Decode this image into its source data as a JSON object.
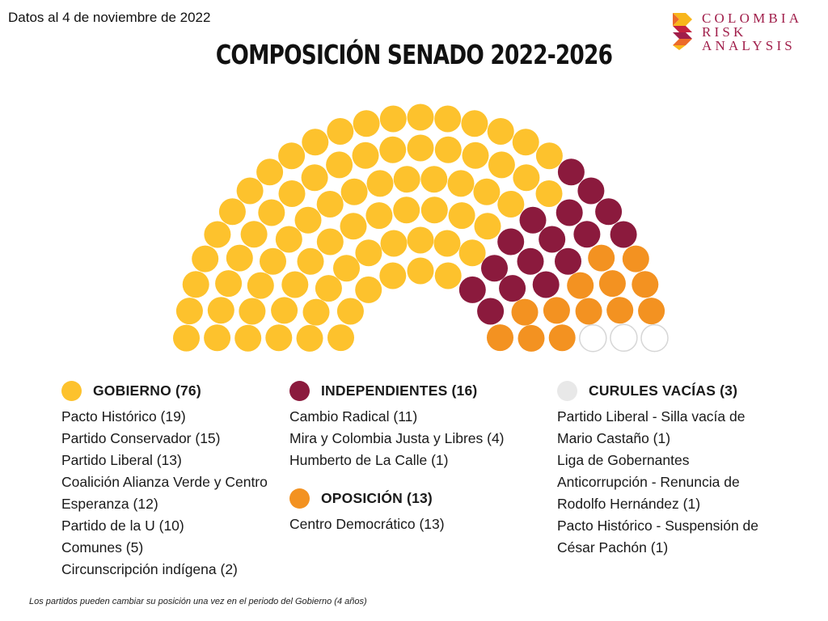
{
  "header": {
    "date_note": "Datos al 4 de noviembre de 2022",
    "logo_text": [
      "Colombia",
      "Risk",
      "Analysis"
    ]
  },
  "colors": {
    "gobierno": "#fdc22d",
    "independientes": "#8b1a3d",
    "oposicion": "#f39221",
    "vacias": "#ffffff",
    "vacias_legend": "#e8e8e8",
    "logo": "#a01e4a"
  },
  "chart_data": {
    "type": "parliament",
    "title": "COMPOSICIÓN SENADO 2022-2026",
    "total_seats": 108,
    "series": [
      {
        "name": "GOBIERNO",
        "count": 76,
        "color": "#fdc22d"
      },
      {
        "name": "INDEPENDIENTES",
        "count": 16,
        "color": "#8b1a3d"
      },
      {
        "name": "OPOSICIÓN",
        "count": 13,
        "color": "#f39221"
      },
      {
        "name": "CURULES VACÍAS",
        "count": 3,
        "color": "#ffffff"
      }
    ]
  },
  "legend": {
    "columns": [
      [
        {
          "title": "GOBIERNO",
          "count": "(76)",
          "color": "#fdc22d",
          "items": [
            "Pacto Histórico (19)",
            "Partido Conservador (15)",
            "Partido Liberal (13)",
            "Coalición Alianza Verde y Centro Esperanza (12)",
            "Partido de la U (10)",
            "Comunes (5)",
            "Circunscripción indígena (2)"
          ]
        }
      ],
      [
        {
          "title": "INDEPENDIENTES",
          "count": "(16)",
          "color": "#8b1a3d",
          "items": [
            "Cambio Radical (11)",
            "Mira y Colombia Justa y Libres (4)",
            "Humberto de La Calle (1)"
          ]
        },
        {
          "title": "OPOSICIÓN",
          "count": "(13)",
          "color": "#f39221",
          "items": [
            "Centro Democrático (13)"
          ]
        }
      ],
      [
        {
          "title": "CURULES VACÍAS",
          "count": "(3)",
          "color": "#e8e8e8",
          "items": [
            "Partido Liberal - Silla vacía de Mario Castaño (1)",
            "Liga de Gobernantes Anticorrupción - Renuncia de Rodolfo Hernández (1)",
            "Pacto Histórico - Suspensión de César Pachón (1)"
          ]
        }
      ]
    ]
  },
  "footnote": "Los partidos pueden cambiar su posición una vez en el periodo del Gobierno (4 años)"
}
